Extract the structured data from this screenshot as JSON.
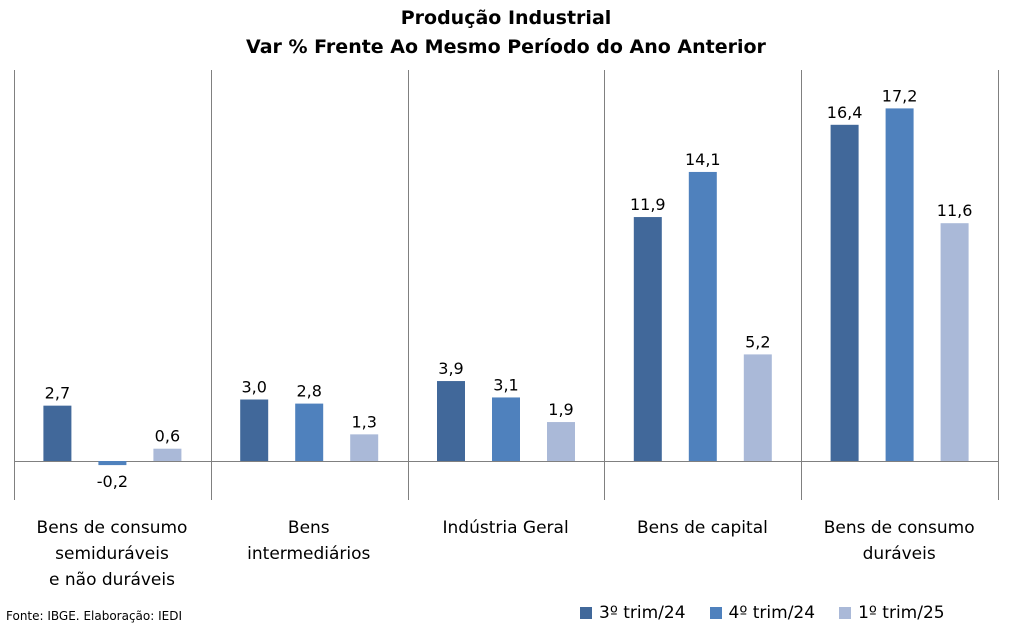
{
  "title": "Produção Industrial",
  "subtitle": "Var % Frente Ao Mesmo Período do Ano Anterior",
  "source": "Fonte: IBGE. Elaboração: IEDI",
  "colors": {
    "s0": "#41689a",
    "s1": "#4f81bd",
    "s2": "#aab9d8",
    "grid": "#808080"
  },
  "chart_data": {
    "type": "bar",
    "title": "Produção Industrial",
    "subtitle": "Var % Frente Ao Mesmo Período do Ano Anterior",
    "categories": [
      "Bens de consumo\nsemiduráveis\ne não duráveis",
      "Bens\nintermediários",
      "Indústria Geral",
      "Bens de capital",
      "Bens de consumo\nduráveis"
    ],
    "series": [
      {
        "name": "3º trim/24",
        "values": [
          2.7,
          3.0,
          3.9,
          11.9,
          16.4
        ],
        "labels": [
          "2,7",
          "3,0",
          "3,9",
          "11,9",
          "16,4"
        ]
      },
      {
        "name": "4º trim/24",
        "values": [
          -0.2,
          2.8,
          3.1,
          14.1,
          17.2
        ],
        "labels": [
          "-0,2",
          "2,8",
          "3,1",
          "14,1",
          "17,2"
        ]
      },
      {
        "name": "1º trim/25",
        "values": [
          0.6,
          1.3,
          1.9,
          5.2,
          11.6
        ],
        "labels": [
          "0,6",
          "1,3",
          "1,9",
          "5,2",
          "11,6"
        ]
      }
    ],
    "legend_position": "bottom-right",
    "grid": false
  }
}
